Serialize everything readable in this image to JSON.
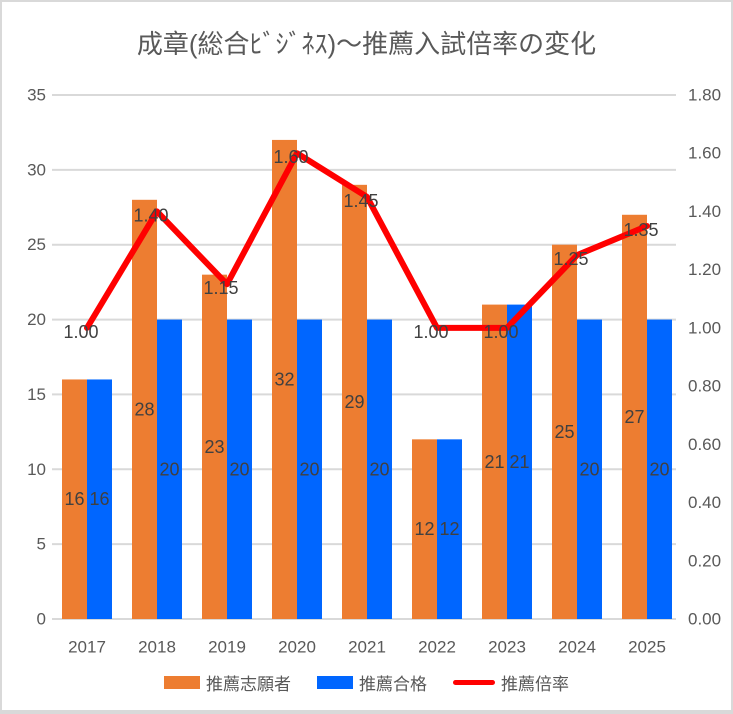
{
  "chart_data": {
    "type": "combo",
    "title": "成章(総合ﾋﾞｼﾞﾈｽ)～推薦入試倍率の変化",
    "categories": [
      "2017",
      "2018",
      "2019",
      "2020",
      "2021",
      "2022",
      "2023",
      "2024",
      "2025"
    ],
    "series": [
      {
        "id": "applicants",
        "name": "推薦志願者",
        "type": "bar",
        "axis": "left",
        "color": "#ED7D31",
        "values": [
          16,
          28,
          23,
          32,
          29,
          12,
          21,
          25,
          27
        ],
        "labels": [
          "16",
          "28",
          "23",
          "32",
          "29",
          "12",
          "21",
          "25",
          "27"
        ]
      },
      {
        "id": "accepted",
        "name": "推薦合格",
        "type": "bar",
        "axis": "left",
        "color": "#0066FF",
        "values": [
          16,
          20,
          20,
          20,
          20,
          12,
          21,
          20,
          20
        ],
        "labels": [
          "16",
          "20",
          "20",
          "20",
          "20",
          "12",
          "21",
          "20",
          "20"
        ]
      },
      {
        "id": "ratio",
        "name": "推薦倍率",
        "type": "line",
        "axis": "right",
        "color": "#FF0000",
        "values": [
          1.0,
          1.4,
          1.15,
          1.6,
          1.45,
          1.0,
          1.0,
          1.25,
          1.35
        ],
        "labels": [
          "1.00",
          "1.40",
          "1.15",
          "1.60",
          "1.45",
          "1.00",
          "1.00",
          "1.25",
          "1.35"
        ]
      }
    ],
    "left_axis": {
      "min": 0,
      "max": 35,
      "step": 5,
      "ticks": [
        "35",
        "30",
        "25",
        "20",
        "15",
        "10",
        "5",
        "0"
      ]
    },
    "right_axis": {
      "min": 0,
      "max": 1.8,
      "step": 0.2,
      "ticks": [
        "1.80",
        "1.60",
        "1.40",
        "1.20",
        "1.00",
        "0.80",
        "0.60",
        "0.40",
        "0.20",
        "0.00"
      ]
    },
    "legend_position": "bottom",
    "grid": true,
    "style": {
      "background": "#FFFFFF",
      "border_color": "#D9D9D9",
      "title_color": "#595959",
      "axis_text_color": "#595959",
      "data_label_color": "#404040",
      "gridline_color": "#D9D9D9"
    }
  }
}
